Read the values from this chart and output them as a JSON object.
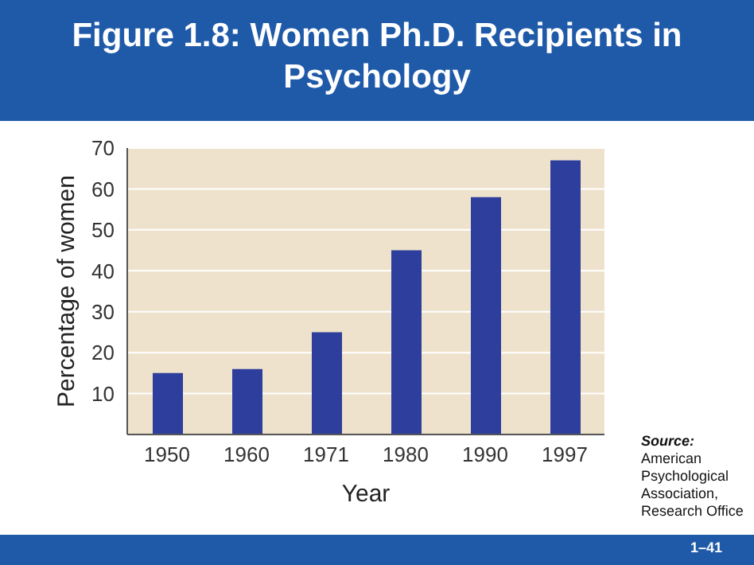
{
  "chart_data": {
    "type": "bar",
    "title": "Figure 1.8: Women Ph.D. Recipients in Psychology",
    "xlabel": "Year",
    "ylabel": "Percentage of women",
    "categories": [
      "1950",
      "1960",
      "1971",
      "1980",
      "1990",
      "1997"
    ],
    "values": [
      15,
      16,
      25,
      45,
      58,
      67
    ],
    "color": "#2e3e9c",
    "ylim": [
      0,
      70
    ],
    "yticks": [
      10,
      20,
      30,
      40,
      50,
      60,
      70
    ],
    "grid": "y",
    "annotations": [
      "Source:",
      "American Psychological Association, Research Office",
      "1–41"
    ]
  }
}
